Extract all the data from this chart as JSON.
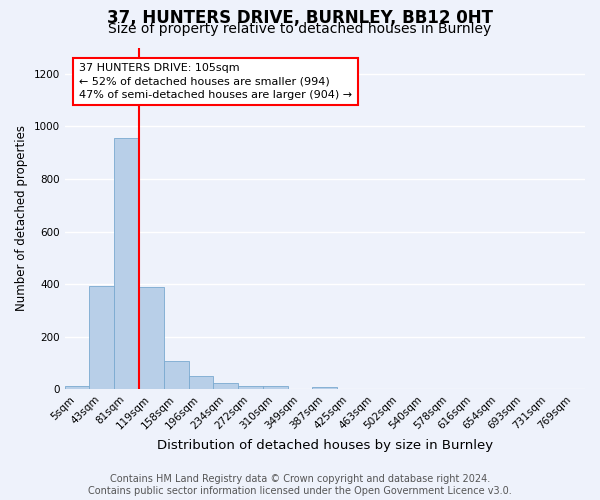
{
  "title": "37, HUNTERS DRIVE, BURNLEY, BB12 0HT",
  "subtitle": "Size of property relative to detached houses in Burnley",
  "xlabel": "Distribution of detached houses by size in Burnley",
  "ylabel": "Number of detached properties",
  "bar_labels": [
    "5sqm",
    "43sqm",
    "81sqm",
    "119sqm",
    "158sqm",
    "196sqm",
    "234sqm",
    "272sqm",
    "310sqm",
    "349sqm",
    "387sqm",
    "425sqm",
    "463sqm",
    "502sqm",
    "540sqm",
    "578sqm",
    "616sqm",
    "654sqm",
    "693sqm",
    "731sqm",
    "769sqm"
  ],
  "bar_values": [
    15,
    395,
    955,
    390,
    110,
    52,
    25,
    15,
    13,
    0,
    10,
    0,
    0,
    0,
    0,
    0,
    0,
    0,
    0,
    0,
    0
  ],
  "bar_color": "#b8cfe8",
  "bar_edge_color": "#7aaad0",
  "vline_x": 2.5,
  "vline_color": "red",
  "annotation_text": "37 HUNTERS DRIVE: 105sqm\n← 52% of detached houses are smaller (994)\n47% of semi-detached houses are larger (904) →",
  "annotation_box_facecolor": "white",
  "annotation_box_edgecolor": "red",
  "ylim": [
    0,
    1300
  ],
  "yticks": [
    0,
    200,
    400,
    600,
    800,
    1000,
    1200
  ],
  "background_color": "#eef2fb",
  "grid_color": "white",
  "footer_text": "Contains HM Land Registry data © Crown copyright and database right 2024.\nContains public sector information licensed under the Open Government Licence v3.0.",
  "title_fontsize": 12,
  "subtitle_fontsize": 10,
  "xlabel_fontsize": 9.5,
  "ylabel_fontsize": 8.5,
  "tick_fontsize": 7.5,
  "footer_fontsize": 7,
  "ann_fontsize": 8
}
